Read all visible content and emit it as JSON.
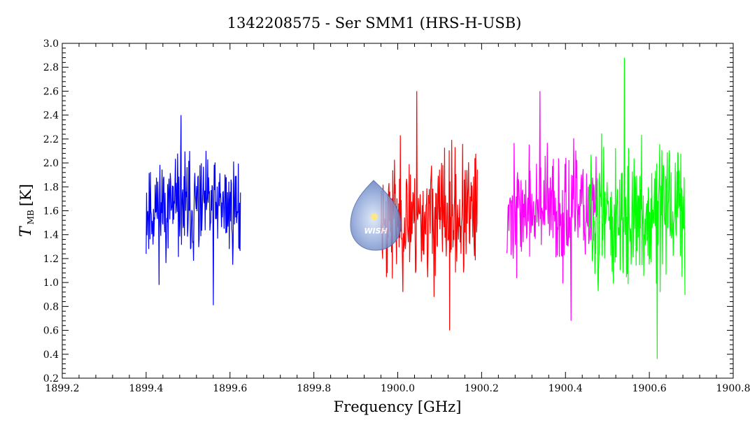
{
  "chart_data": {
    "type": "line",
    "title": "1342208575 - Ser SMM1 (HRS-H-USB)",
    "xlabel": "Frequency [GHz]",
    "ylabel": {
      "symbol": "T",
      "subscript": "MB",
      "unit": "[K]"
    },
    "xlim": [
      1899.2,
      1900.8
    ],
    "ylim": [
      0.2,
      3.0
    ],
    "x_ticks": [
      "1899.2",
      "1899.4",
      "1899.6",
      "1899.8",
      "1900.0",
      "1900.2",
      "1900.4",
      "1900.6",
      "1900.8"
    ],
    "y_ticks": [
      "0.2",
      "0.4",
      "0.6",
      "0.8",
      "1.0",
      "1.2",
      "1.4",
      "1.6",
      "1.8",
      "2.0",
      "2.2",
      "2.4",
      "2.6",
      "2.8",
      "3.0"
    ],
    "grid": false,
    "legend": "none",
    "series": [
      {
        "color": "#0000ff",
        "x_range": [
          1899.4,
          1899.625
        ],
        "mean": 1.62,
        "spread": 0.3,
        "min": 0.81,
        "max": 2.4,
        "npoints": 220,
        "seed": 11
      },
      {
        "color": "#ff0000",
        "x_range": [
          1899.96,
          1900.19
        ],
        "mean": 1.55,
        "spread": 0.36,
        "min": 0.6,
        "max": 2.6,
        "npoints": 230,
        "seed": 23
      },
      {
        "color": "#ff00ff",
        "x_range": [
          1900.26,
          1900.475
        ],
        "mean": 1.6,
        "spread": 0.32,
        "min": 0.68,
        "max": 2.6,
        "npoints": 210,
        "seed": 37
      },
      {
        "color": "#00ff00",
        "x_range": [
          1900.455,
          1900.685
        ],
        "mean": 1.55,
        "spread": 0.4,
        "min": 0.36,
        "max": 2.88,
        "npoints": 230,
        "seed": 51
      }
    ]
  },
  "logo": {
    "text": "WISH"
  }
}
